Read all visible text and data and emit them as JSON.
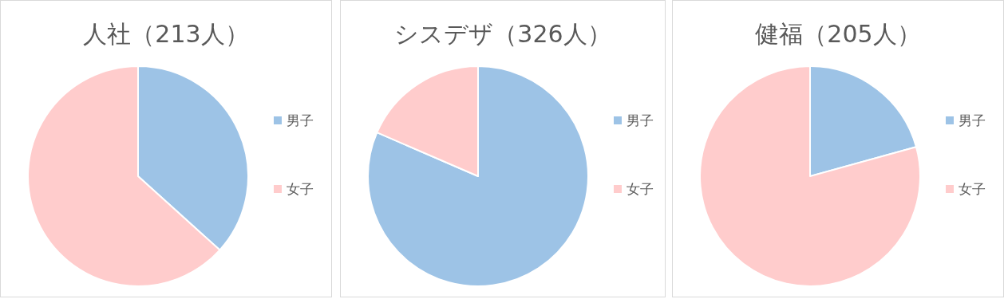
{
  "chart_data": [
    {
      "type": "pie",
      "title": "人社（213人）",
      "categories": [
        "男子",
        "女子"
      ],
      "values": [
        36.7,
        63.3
      ],
      "colors": [
        "#9dc3e6",
        "#ffcccc"
      ],
      "legend": "right"
    },
    {
      "type": "pie",
      "title": "シスデザ（326人）",
      "categories": [
        "男子",
        "女子"
      ],
      "values": [
        81.5,
        18.5
      ],
      "colors": [
        "#9dc3e6",
        "#ffcccc"
      ],
      "legend": "right"
    },
    {
      "type": "pie",
      "title": "健福（205人）",
      "categories": [
        "男子",
        "女子"
      ],
      "values": [
        20.7,
        79.3
      ],
      "colors": [
        "#9dc3e6",
        "#ffcccc"
      ],
      "legend": "right"
    }
  ]
}
